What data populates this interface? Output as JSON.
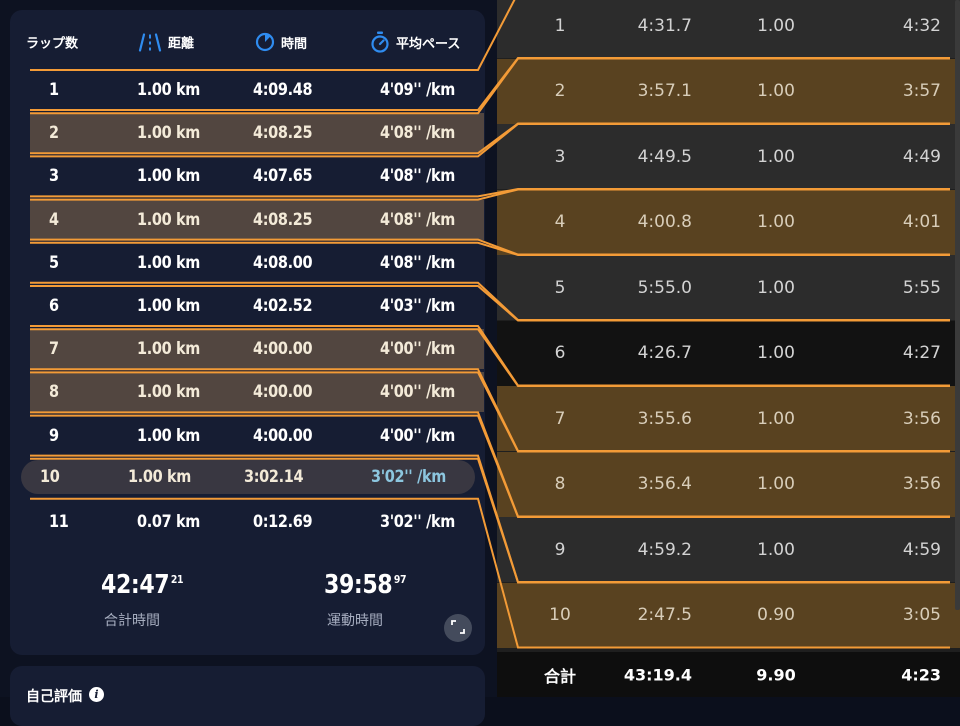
{
  "left": {
    "headers": {
      "lap": "ラップ数",
      "distance": "距離",
      "time": "時間",
      "pace": "平均ペース"
    },
    "laps": [
      {
        "lap": "1",
        "distance": "1.00 km",
        "time": "4:09.48",
        "pace": "4'09'' /km",
        "highlight": false
      },
      {
        "lap": "2",
        "distance": "1.00 km",
        "time": "4:08.25",
        "pace": "4'08'' /km",
        "highlight": true
      },
      {
        "lap": "3",
        "distance": "1.00 km",
        "time": "4:07.65",
        "pace": "4'08'' /km",
        "highlight": false
      },
      {
        "lap": "4",
        "distance": "1.00 km",
        "time": "4:08.25",
        "pace": "4'08'' /km",
        "highlight": true
      },
      {
        "lap": "5",
        "distance": "1.00 km",
        "time": "4:08.00",
        "pace": "4'08'' /km",
        "highlight": false
      },
      {
        "lap": "6",
        "distance": "1.00 km",
        "time": "4:02.52",
        "pace": "4'03'' /km",
        "highlight": false
      },
      {
        "lap": "7",
        "distance": "1.00 km",
        "time": "4:00.00",
        "pace": "4'00'' /km",
        "highlight": true
      },
      {
        "lap": "8",
        "distance": "1.00 km",
        "time": "4:00.00",
        "pace": "4'00'' /km",
        "highlight": true
      },
      {
        "lap": "9",
        "distance": "1.00 km",
        "time": "4:00.00",
        "pace": "4'00'' /km",
        "highlight": false
      },
      {
        "lap": "10",
        "distance": "1.00 km",
        "time": "3:02.14",
        "pace": "3'02'' /km",
        "highlight": true,
        "selected": true
      },
      {
        "lap": "11",
        "distance": "0.07 km",
        "time": "0:12.69",
        "pace": "3'02'' /km",
        "highlight": false
      }
    ],
    "totals": {
      "total_time_main": "42:47",
      "total_time_frac": "21",
      "total_time_label": "合計時間",
      "moving_time_main": "39:58",
      "moving_time_frac": "97",
      "moving_time_label": "運動時間"
    },
    "self_eval_label": "自己評価",
    "info_glyph": "i"
  },
  "right": {
    "laps": [
      {
        "lap": "1",
        "time": "4:31.7",
        "distance": "1.00",
        "pace": "4:32",
        "style": "dark"
      },
      {
        "lap": "2",
        "time": "3:57.1",
        "distance": "1.00",
        "pace": "3:57",
        "style": "hl"
      },
      {
        "lap": "3",
        "time": "4:49.5",
        "distance": "1.00",
        "pace": "4:49",
        "style": "dark"
      },
      {
        "lap": "4",
        "time": "4:00.8",
        "distance": "1.00",
        "pace": "4:01",
        "style": "hl"
      },
      {
        "lap": "5",
        "time": "5:55.0",
        "distance": "1.00",
        "pace": "5:55",
        "style": "dark"
      },
      {
        "lap": "6",
        "time": "4:26.7",
        "distance": "1.00",
        "pace": "4:27",
        "style": "black"
      },
      {
        "lap": "7",
        "time": "3:55.6",
        "distance": "1.00",
        "pace": "3:56",
        "style": "hl"
      },
      {
        "lap": "8",
        "time": "3:56.4",
        "distance": "1.00",
        "pace": "3:56",
        "style": "hl"
      },
      {
        "lap": "9",
        "time": "4:59.2",
        "distance": "1.00",
        "pace": "4:59",
        "style": "dark"
      },
      {
        "lap": "10",
        "time": "2:47.5",
        "distance": "0.90",
        "pace": "3:05",
        "style": "hl"
      }
    ],
    "total": {
      "label": "合計",
      "time": "43:19.4",
      "distance": "9.90",
      "pace": "4:23"
    }
  },
  "colors": {
    "connector": "#f39b37",
    "left_highlight": "#6b5339",
    "right_highlight": "#594220",
    "pace_selected": "#8cc6df",
    "header_icon_blue": "#2f8cf0"
  },
  "icons": {
    "distance": "road-icon",
    "time": "clock-icon",
    "pace": "stopwatch-icon",
    "expand": "expand-icon",
    "info": "info-icon"
  }
}
